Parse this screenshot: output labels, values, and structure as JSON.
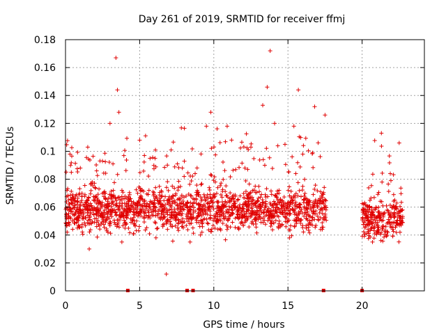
{
  "chart_data": {
    "type": "scatter",
    "title": "Day 261 of 2019, SRMTID for receiver ffmj",
    "xlabel": "GPS time / hours",
    "ylabel": "SRMTID / TECUs",
    "xlim": [
      0,
      24.2
    ],
    "ylim": [
      0,
      0.18
    ],
    "xticks": [
      0,
      5,
      10,
      15,
      20
    ],
    "xtick_labels": [
      "0",
      "5",
      "10",
      "15",
      "20"
    ],
    "yticks": [
      0,
      0.02,
      0.04,
      0.06,
      0.08,
      0.1,
      0.12,
      0.14,
      0.16,
      0.18
    ],
    "ytick_labels": [
      "0",
      "0.02",
      "0.04",
      "0.06",
      "0.08",
      "0.1",
      "0.12",
      "0.14",
      "0.16",
      "0.18"
    ],
    "grid": true,
    "marker": "+",
    "color": "#e00000",
    "segments": [
      {
        "start": 0.0,
        "end": 17.6,
        "center": 0.058
      },
      {
        "start": 20.0,
        "end": 22.8,
        "center": 0.052
      }
    ],
    "series": [
      {
        "name": "SRMTID",
        "x": [
          0.1,
          0.3,
          0.5,
          0.8,
          1.0,
          1.3,
          1.5,
          1.6,
          1.8,
          2.1,
          2.4,
          2.7,
          3.0,
          3.2,
          3.4,
          3.5,
          3.6,
          3.8,
          4.0,
          4.3,
          4.6,
          5.0,
          5.3,
          5.7,
          6.1,
          6.5,
          6.8,
          7.2,
          7.6,
          8.0,
          8.4,
          8.8,
          9.2,
          9.5,
          9.8,
          10.1,
          10.5,
          10.9,
          11.3,
          11.7,
          12.1,
          12.5,
          12.9,
          13.3,
          13.6,
          13.8,
          14.1,
          14.4,
          14.8,
          15.1,
          15.4,
          15.7,
          16.0,
          16.4,
          16.8,
          17.2,
          17.5,
          20.1,
          20.4,
          20.7,
          21.0,
          21.3,
          21.6,
          21.9,
          22.2,
          22.5,
          22.7
        ],
        "y": [
          0.072,
          0.098,
          0.055,
          0.045,
          0.088,
          0.062,
          0.103,
          0.03,
          0.078,
          0.086,
          0.048,
          0.066,
          0.12,
          0.091,
          0.167,
          0.144,
          0.128,
          0.035,
          0.066,
          0.058,
          0.041,
          0.108,
          0.052,
          0.095,
          0.038,
          0.062,
          0.012,
          0.075,
          0.048,
          0.082,
          0.035,
          0.066,
          0.042,
          0.118,
          0.128,
          0.078,
          0.058,
          0.118,
          0.066,
          0.045,
          0.088,
          0.103,
          0.055,
          0.133,
          0.146,
          0.172,
          0.12,
          0.072,
          0.105,
          0.038,
          0.118,
          0.144,
          0.098,
          0.062,
          0.132,
          0.071,
          0.126,
          0.062,
          0.044,
          0.035,
          0.052,
          0.113,
          0.046,
          0.084,
          0.065,
          0.106,
          0.049
        ]
      }
    ],
    "zero_markers_x": [
      4.2,
      8.2,
      8.6,
      17.4,
      20.0
    ]
  }
}
